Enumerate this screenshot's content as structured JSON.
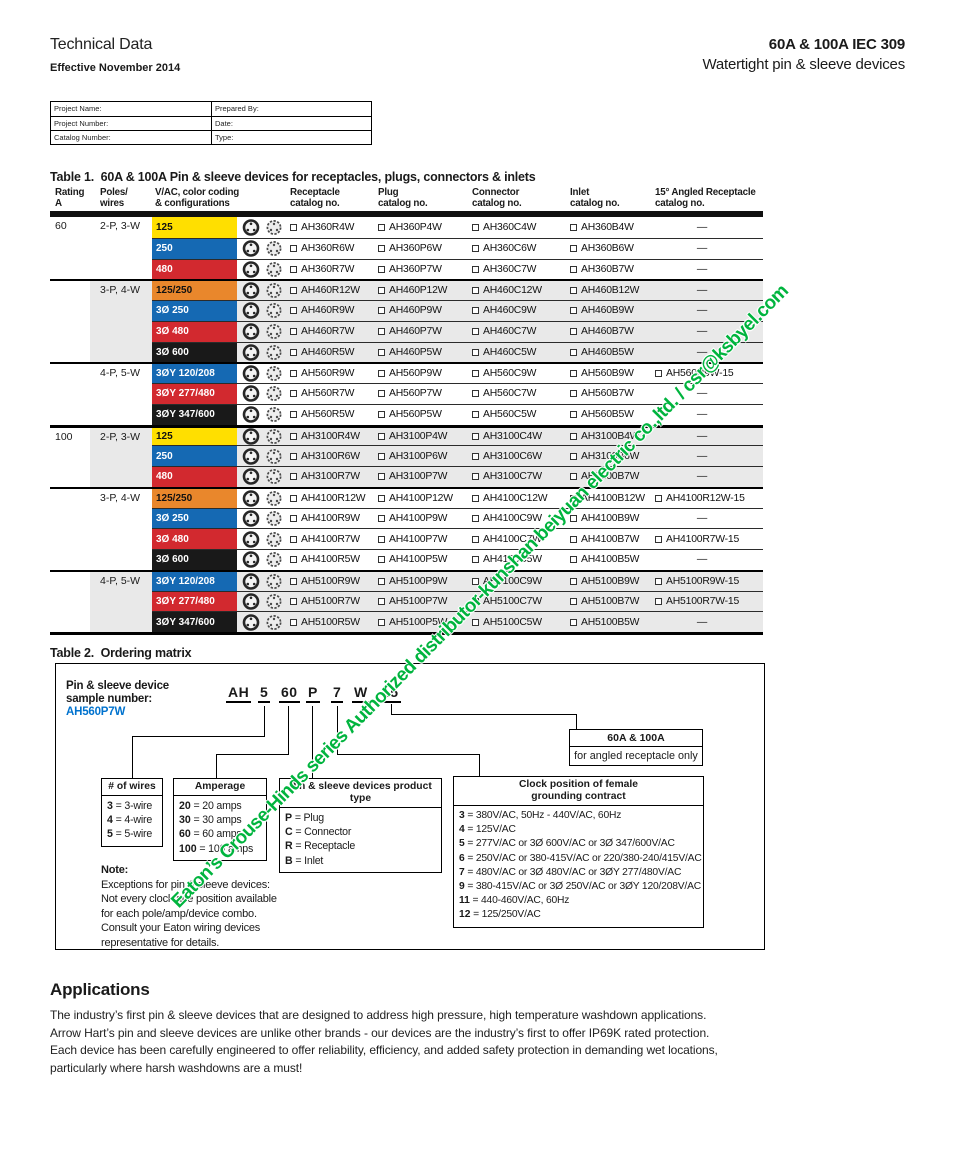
{
  "header": {
    "title": "Technical Data",
    "effective": "Effective November 2014",
    "product_line1": "60A & 100A IEC 309",
    "product_line2": "Watertight pin & sleeve devices"
  },
  "project_form": {
    "fields": [
      "Project Name:",
      "Prepared By:",
      "Project Number:",
      "Date:",
      "Catalog Number:",
      "Type:"
    ]
  },
  "table1": {
    "title": "Table 1.  60A & 100A Pin & sleeve devices for receptacles, plugs, connectors & inlets",
    "columns": [
      "Rating\nA",
      "Poles/\nwires",
      "V/AC, color coding\n& configurations",
      "Receptacle\ncatalog no.",
      "Plug\ncatalog no.",
      "Connector\ncatalog no.",
      "Inlet\ncatalog no.",
      "15° Angled Receptacle\ncatalog no."
    ],
    "dash": "—",
    "colors": {
      "yellow": {
        "bg": "#ffdf00",
        "fg": "#111111"
      },
      "blue": {
        "bg": "#1569b3",
        "fg": "#ffffff"
      },
      "red": {
        "bg": "#d2292f",
        "fg": "#ffffff"
      },
      "orange": {
        "bg": "#e9872c",
        "fg": "#111111"
      },
      "black": {
        "bg": "#191919",
        "fg": "#ffffff"
      }
    },
    "rows": [
      {
        "rating": "60",
        "poles": "2-P, 3-W",
        "vac": "125",
        "c": "yellow",
        "cats": [
          "AH360R4W",
          "AH360P4W",
          "AH360C4W",
          "AH360B4W"
        ],
        "a": "",
        "shade": false,
        "gs": false,
        "ss": false
      },
      {
        "rating": "",
        "poles": "",
        "vac": "250",
        "c": "blue",
        "cats": [
          "AH360R6W",
          "AH360P6W",
          "AH360C6W",
          "AH360B6W"
        ],
        "a": "",
        "shade": false,
        "gs": false,
        "ss": false
      },
      {
        "rating": "",
        "poles": "",
        "vac": "480",
        "c": "red",
        "cats": [
          "AH360R7W",
          "AH360P7W",
          "AH360C7W",
          "AH360B7W"
        ],
        "a": "",
        "shade": false,
        "gs": false,
        "ss": false
      },
      {
        "rating": "",
        "poles": "3-P, 4-W",
        "vac": "125/250",
        "c": "orange",
        "cats": [
          "AH460R12W",
          "AH460P12W",
          "AH460C12W",
          "AH460B12W"
        ],
        "a": "",
        "shade": true,
        "gs": true,
        "ss": false
      },
      {
        "rating": "",
        "poles": "",
        "vac": "3Ø 250",
        "c": "blue",
        "cats": [
          "AH460R9W",
          "AH460P9W",
          "AH460C9W",
          "AH460B9W"
        ],
        "a": "",
        "shade": true,
        "gs": false,
        "ss": false
      },
      {
        "rating": "",
        "poles": "",
        "vac": "3Ø 480",
        "c": "red",
        "cats": [
          "AH460R7W",
          "AH460P7W",
          "AH460C7W",
          "AH460B7W"
        ],
        "a": "",
        "shade": true,
        "gs": false,
        "ss": false
      },
      {
        "rating": "",
        "poles": "",
        "vac": "3Ø 600",
        "c": "black",
        "cats": [
          "AH460R5W",
          "AH460P5W",
          "AH460C5W",
          "AH460B5W"
        ],
        "a": "",
        "shade": true,
        "gs": false,
        "ss": false
      },
      {
        "rating": "",
        "poles": "4-P, 5-W",
        "vac": "3ØY 120/208",
        "c": "blue",
        "cats": [
          "AH560R9W",
          "AH560P9W",
          "AH560C9W",
          "AH560B9W"
        ],
        "a": "AH560R9W-15",
        "shade": false,
        "gs": true,
        "ss": false
      },
      {
        "rating": "",
        "poles": "",
        "vac": "3ØY 277/480",
        "c": "red",
        "cats": [
          "AH560R7W",
          "AH560P7W",
          "AH560C7W",
          "AH560B7W"
        ],
        "a": "",
        "shade": false,
        "gs": false,
        "ss": false
      },
      {
        "rating": "",
        "poles": "",
        "vac": "3ØY 347/600",
        "c": "black",
        "cats": [
          "AH560R5W",
          "AH560P5W",
          "AH560C5W",
          "AH560B5W"
        ],
        "a": "",
        "shade": false,
        "gs": false,
        "ss": false
      },
      {
        "rating": "100",
        "poles": "2-P, 3-W",
        "vac": "125",
        "c": "yellow",
        "cats": [
          "AH3100R4W",
          "AH3100P4W",
          "AH3100C4W",
          "AH3100B4W"
        ],
        "a": "",
        "shade": true,
        "gs": false,
        "ss": true
      },
      {
        "rating": "",
        "poles": "",
        "vac": "250",
        "c": "blue",
        "cats": [
          "AH3100R6W",
          "AH3100P6W",
          "AH3100C6W",
          "AH3100B6W"
        ],
        "a": "",
        "shade": true,
        "gs": false,
        "ss": false
      },
      {
        "rating": "",
        "poles": "",
        "vac": "480",
        "c": "red",
        "cats": [
          "AH3100R7W",
          "AH3100P7W",
          "AH3100C7W",
          "AH3100B7W"
        ],
        "a": "",
        "shade": true,
        "gs": false,
        "ss": false
      },
      {
        "rating": "",
        "poles": "3-P, 4-W",
        "vac": "125/250",
        "c": "orange",
        "cats": [
          "AH4100R12W",
          "AH4100P12W",
          "AH4100C12W",
          "AH4100B12W"
        ],
        "a": "AH4100R12W-15",
        "shade": false,
        "gs": true,
        "ss": false
      },
      {
        "rating": "",
        "poles": "",
        "vac": "3Ø 250",
        "c": "blue",
        "cats": [
          "AH4100R9W",
          "AH4100P9W",
          "AH4100C9W",
          "AH4100B9W"
        ],
        "a": "",
        "shade": false,
        "gs": false,
        "ss": false
      },
      {
        "rating": "",
        "poles": "",
        "vac": "3Ø 480",
        "c": "red",
        "cats": [
          "AH4100R7W",
          "AH4100P7W",
          "AH4100C7W",
          "AH4100B7W"
        ],
        "a": "AH4100R7W-15",
        "shade": false,
        "gs": false,
        "ss": false
      },
      {
        "rating": "",
        "poles": "",
        "vac": "3Ø 600",
        "c": "black",
        "cats": [
          "AH4100R5W",
          "AH4100P5W",
          "AH4100C5W",
          "AH4100B5W"
        ],
        "a": "",
        "shade": false,
        "gs": false,
        "ss": false
      },
      {
        "rating": "",
        "poles": "4-P, 5-W",
        "vac": "3ØY 120/208",
        "c": "blue",
        "cats": [
          "AH5100R9W",
          "AH5100P9W",
          "AH5100C9W",
          "AH5100B9W"
        ],
        "a": "AH5100R9W-15",
        "shade": true,
        "gs": true,
        "ss": false
      },
      {
        "rating": "",
        "poles": "",
        "vac": "3ØY 277/480",
        "c": "red",
        "cats": [
          "AH5100R7W",
          "AH5100P7W",
          "AH5100C7W",
          "AH5100B7W"
        ],
        "a": "AH5100R7W-15",
        "shade": true,
        "gs": false,
        "ss": false
      },
      {
        "rating": "",
        "poles": "",
        "vac": "3ØY 347/600",
        "c": "black",
        "cats": [
          "AH5100R5W",
          "AH5100P5W",
          "AH5100C5W",
          "AH5100B5W"
        ],
        "a": "",
        "shade": true,
        "gs": false,
        "ss": false
      }
    ]
  },
  "table2": {
    "title": "Table 2.  Ordering matrix",
    "sample_label_line1": "Pin & sleeve device",
    "sample_label_line2": "sample number:",
    "sample_number": "AH560P7W",
    "sample_number_color": "#0072ce",
    "segments": [
      "AH",
      "5",
      "60",
      "P",
      "7",
      "W",
      "15"
    ],
    "eq": " = ",
    "angled_box": {
      "line1": "60A & 100A",
      "line2": "for angled receptacle only"
    },
    "wires": {
      "title": "# of wires",
      "items": [
        {
          "k": "3",
          "v": "3-wire"
        },
        {
          "k": "4",
          "v": "4-wire"
        },
        {
          "k": "5",
          "v": "5-wire"
        }
      ]
    },
    "amperage": {
      "title": "Amperage",
      "items": [
        {
          "k": "20",
          "v": "20 amps"
        },
        {
          "k": "30",
          "v": "30 amps"
        },
        {
          "k": "60",
          "v": "60 amps"
        },
        {
          "k": "100",
          "v": "100 amps"
        }
      ]
    },
    "ptype": {
      "title": "Pin & sleeve devices product type",
      "items": [
        {
          "k": "P",
          "v": "Plug"
        },
        {
          "k": "C",
          "v": "Connector"
        },
        {
          "k": "R",
          "v": "Receptacle"
        },
        {
          "k": "B",
          "v": "Inlet"
        }
      ]
    },
    "clock": {
      "title": "Clock position of female\ngrounding contract",
      "items": [
        {
          "k": "3",
          "v": "380V/AC, 50Hz - 440V/AC, 60Hz"
        },
        {
          "k": "4",
          "v": "125V/AC"
        },
        {
          "k": "5",
          "v": "277V/AC or 3Ø 600V/AC or 3Ø 347/600V/AC"
        },
        {
          "k": "6",
          "v": "250V/AC or 380-415V/AC or 220/380-240/415V/AC"
        },
        {
          "k": "7",
          "v": "480V/AC or 3Ø 480V/AC or 3ØY 277/480V/AC"
        },
        {
          "k": "9",
          "v": "380-415V/AC or 3Ø 250V/AC or 3ØY 120/208V/AC"
        },
        {
          "k": "11",
          "v": "440-460V/AC, 60Hz"
        },
        {
          "k": "12",
          "v": "125/250V/AC"
        }
      ]
    },
    "note_title": "Note:",
    "note_body": "Exceptions for pin & sleeve devices:\nNot every clockface position available\nfor each pole/amp/device combo.\nConsult your Eaton wiring devices\nrepresentative for details."
  },
  "applications": {
    "title": "Applications",
    "body": "The industry’s first pin & sleeve devices that are designed to address high pressure, high temperature washdown applications.\nArrow Hart’s pin and sleeve devices are unlike other brands - our devices are the industry’s first to offer IP69K rated protection.\nEach device has been carefully engineered to offer reliability, efficiency, and added  safety protection in demanding wet locations,\nparticularly where harsh washdowns are a must!"
  },
  "watermark": {
    "text": "Eaton’s Crouse-Hinds series Authorized distributor-kunshan beiyuan electric co.,ltd. / csr@ksbyel.com",
    "color": "#00b43e"
  }
}
